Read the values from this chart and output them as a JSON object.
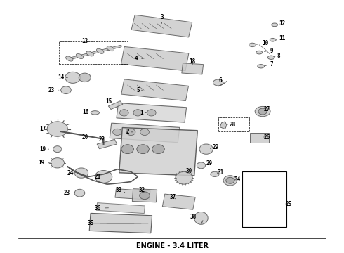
{
  "title": "ENGINE - 3.4 LITER",
  "title_fontsize": 7,
  "title_fontstyle": "bold",
  "bg_color": "#ffffff",
  "line_color": "#000000",
  "part_color": "#cccccc",
  "part_edge_color": "#555555",
  "label_fontsize": 5.5,
  "fig_width": 4.9,
  "fig_height": 3.6,
  "dpi": 100
}
